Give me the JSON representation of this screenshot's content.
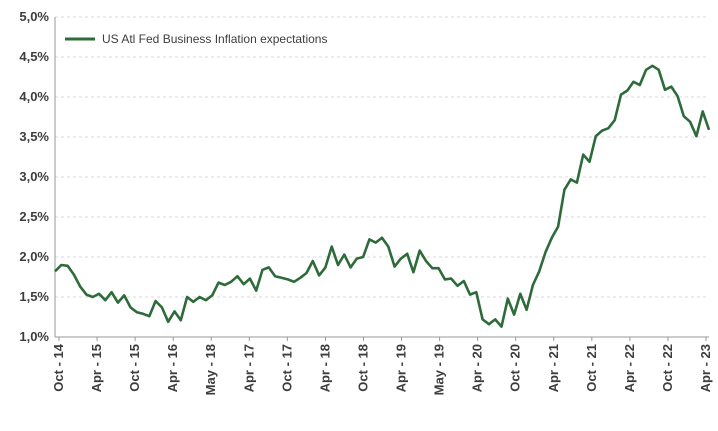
{
  "chart_data": {
    "type": "line",
    "title": "",
    "xlabel": "",
    "ylabel": "",
    "ylim": [
      1.0,
      5.0
    ],
    "y_ticks": [
      "1,0%",
      "1,5%",
      "2,0%",
      "2,5%",
      "3,0%",
      "3,5%",
      "4,0%",
      "4,5%",
      "5,0%"
    ],
    "x_ticks": [
      "Oct - 14",
      "Apr - 15",
      "Oct - 15",
      "Apr - 16",
      "May - 18",
      "Apr - 17",
      "Oct - 17",
      "Apr - 18",
      "Oct - 18",
      "Apr - 19",
      "May - 19",
      "Apr - 20",
      "Oct - 20",
      "Apr - 21",
      "Oct - 21",
      "Apr - 22",
      "Oct - 22",
      "Apr - 23"
    ],
    "grid": true,
    "legend_position": "top-left",
    "series": [
      {
        "name": "US Atl Fed Business Inflation expectations",
        "color": "#2e6b3a",
        "values": [
          1.82,
          1.9,
          1.89,
          1.78,
          1.63,
          1.53,
          1.5,
          1.54,
          1.46,
          1.56,
          1.43,
          1.52,
          1.37,
          1.31,
          1.29,
          1.26,
          1.45,
          1.37,
          1.19,
          1.32,
          1.21,
          1.5,
          1.44,
          1.5,
          1.46,
          1.52,
          1.68,
          1.65,
          1.69,
          1.76,
          1.66,
          1.73,
          1.58,
          1.84,
          1.87,
          1.76,
          1.74,
          1.72,
          1.69,
          1.74,
          1.8,
          1.95,
          1.77,
          1.87,
          2.13,
          1.9,
          2.03,
          1.87,
          1.98,
          2.0,
          2.22,
          2.18,
          2.24,
          2.13,
          1.88,
          1.98,
          2.04,
          1.81,
          2.08,
          1.95,
          1.86,
          1.86,
          1.72,
          1.73,
          1.64,
          1.7,
          1.53,
          1.56,
          1.22,
          1.16,
          1.22,
          1.13,
          1.48,
          1.28,
          1.54,
          1.34,
          1.65,
          1.82,
          2.06,
          2.24,
          2.38,
          2.84,
          2.97,
          2.93,
          3.28,
          3.19,
          3.51,
          3.58,
          3.61,
          3.71,
          4.03,
          4.08,
          4.19,
          4.15,
          4.34,
          4.39,
          4.34,
          4.09,
          4.13,
          4.01,
          3.76,
          3.69,
          3.51,
          3.82,
          3.59
        ]
      }
    ]
  }
}
